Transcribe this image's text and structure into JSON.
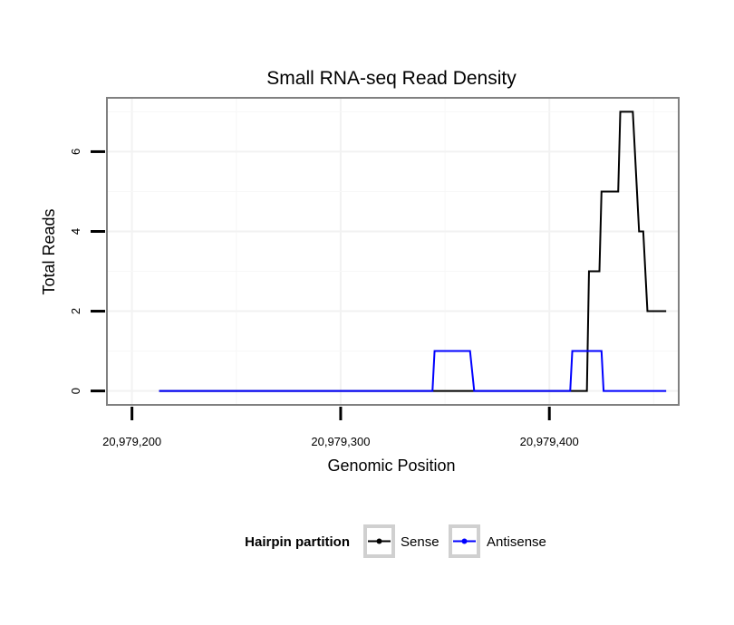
{
  "chart_data": {
    "type": "line",
    "title": "Small RNA-seq Read Density",
    "xlabel": "Genomic Position",
    "ylabel": "Total Reads",
    "xlim": [
      20979188,
      20979462
    ],
    "ylim": [
      -0.35,
      7.35
    ],
    "x_ticks": [
      20979200,
      20979300,
      20979400
    ],
    "x_tick_labels": [
      "20,979,200",
      "20,979,300",
      "20,979,400"
    ],
    "y_ticks": [
      0,
      2,
      4,
      6
    ],
    "y_tick_labels": [
      "0",
      "2",
      "4",
      "6"
    ],
    "grid": true,
    "legend": {
      "title": "Hairpin partition",
      "position": "bottom"
    },
    "series": [
      {
        "name": "Sense",
        "color": "#000000",
        "points": [
          [
            20979213,
            0
          ],
          [
            20979418,
            0
          ],
          [
            20979419,
            3
          ],
          [
            20979424,
            3
          ],
          [
            20979425,
            5
          ],
          [
            20979433,
            5
          ],
          [
            20979434,
            7
          ],
          [
            20979440,
            7
          ],
          [
            20979443,
            4
          ],
          [
            20979445,
            4
          ],
          [
            20979447,
            2
          ],
          [
            20979456,
            2
          ]
        ]
      },
      {
        "name": "Antisense",
        "color": "#0000ff",
        "points": [
          [
            20979213,
            0
          ],
          [
            20979344,
            0
          ],
          [
            20979345,
            1
          ],
          [
            20979362,
            1
          ],
          [
            20979364,
            0
          ],
          [
            20979410,
            0
          ],
          [
            20979411,
            1
          ],
          [
            20979425,
            1
          ],
          [
            20979426,
            0
          ],
          [
            20979456,
            0
          ]
        ]
      }
    ]
  }
}
